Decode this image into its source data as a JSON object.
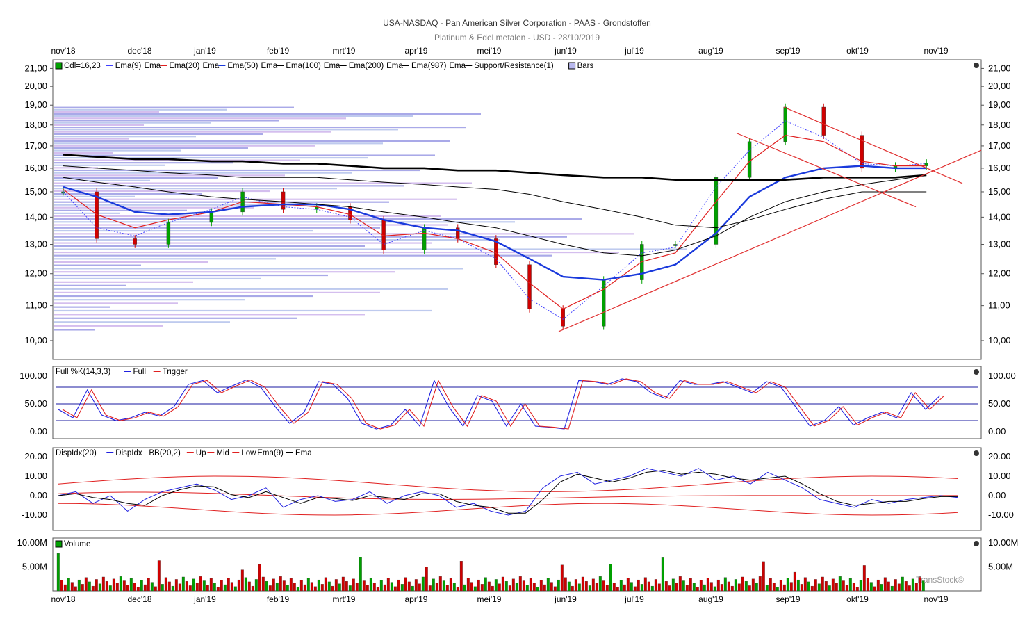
{
  "header": {
    "title": "USA-NASDAQ - Pan American Silver Corporation - PAAS - Grondstoffen",
    "subtitle": "Platinum & Edel metalen - USD - 28/10/2019"
  },
  "months": [
    "nov'18",
    "dec'18",
    "jan'19",
    "feb'19",
    "mrt'19",
    "apr'19",
    "mei'19",
    "jun'19",
    "jul'19",
    "aug'19",
    "sep'19",
    "okt'19",
    "nov'19"
  ],
  "watermark": "TransStock©",
  "colors": {
    "up": "#00a000",
    "down": "#d00000",
    "ema9": "#4040ff",
    "ema20": "#e02020",
    "ema50": "#1a3adc",
    "ema100": "#000000",
    "ema200": "#000000",
    "ema987": "#000000",
    "trend": "#e03030",
    "bars_fill": "#b8b8ee"
  },
  "panels": {
    "price": {
      "legend": [
        "Cdl=16,23",
        "Ema(9)",
        "Ema",
        "Ema(20)",
        "Ema",
        "Ema(50)",
        "Ema",
        "Ema(100)",
        "Ema",
        "Ema(200)",
        "Ema",
        "Ema(987)",
        "Ema",
        "Support/Resistance(1)",
        "Bars"
      ],
      "y_ticks": [
        "21,00",
        "20,00",
        "19,00",
        "18,00",
        "17,00",
        "16,00",
        "15,00",
        "14,00",
        "13,00",
        "12,00",
        "11,00",
        "10,00"
      ],
      "scale": "log"
    },
    "stoch": {
      "legend": [
        "Full %K(14,3,3)",
        "Full",
        "Trigger"
      ],
      "y_ticks": [
        "100.00",
        "50.00",
        "0.00"
      ]
    },
    "disp": {
      "legend": [
        "DispIdx(20)",
        "DispIdx",
        "BB(20,2)",
        "Up",
        "Mid",
        "Low",
        "Ema(9)",
        "Ema"
      ],
      "y_ticks": [
        "20.00",
        "10.00",
        "0.00",
        "-10.00"
      ]
    },
    "volume": {
      "legend": [
        "Volume"
      ],
      "y_ticks": [
        "10.00M",
        "5.00M"
      ]
    }
  },
  "chart_data": {
    "type": "line",
    "title": "USA-NASDAQ - Pan American Silver Corporation - PAAS - Grondstoffen",
    "subtitle": "Platinum & Edel metalen - USD - 28/10/2019",
    "x": [
      "2018-11-01",
      "2018-11-15",
      "2018-12-01",
      "2018-12-15",
      "2019-01-02",
      "2019-01-15",
      "2019-02-01",
      "2019-02-15",
      "2019-03-01",
      "2019-03-15",
      "2019-04-01",
      "2019-04-15",
      "2019-05-01",
      "2019-05-15",
      "2019-05-29",
      "2019-06-15",
      "2019-07-01",
      "2019-07-15",
      "2019-08-01",
      "2019-08-15",
      "2019-08-30",
      "2019-09-15",
      "2019-10-01",
      "2019-10-15",
      "2019-10-28"
    ],
    "series": [
      {
        "name": "Cdl",
        "values": [
          15.0,
          13.2,
          13.0,
          13.8,
          14.2,
          15.0,
          14.3,
          14.4,
          13.9,
          12.8,
          13.6,
          13.2,
          12.3,
          10.9,
          10.4,
          11.8,
          13.0,
          13.0,
          15.6,
          17.2,
          18.9,
          17.5,
          16.0,
          16.1,
          16.23
        ]
      },
      {
        "name": "Ema(9)",
        "values": [
          15.0,
          13.6,
          13.3,
          13.8,
          14.3,
          14.8,
          14.4,
          14.3,
          14.0,
          13.0,
          13.5,
          13.2,
          12.5,
          11.2,
          10.6,
          11.6,
          12.7,
          12.9,
          15.2,
          16.8,
          18.2,
          17.4,
          16.2,
          16.1,
          16.2
        ]
      },
      {
        "name": "Ema(20)",
        "values": [
          15.1,
          14.1,
          13.6,
          13.9,
          14.2,
          14.6,
          14.5,
          14.4,
          14.1,
          13.3,
          13.4,
          13.2,
          12.7,
          11.7,
          10.9,
          11.5,
          12.4,
          12.7,
          14.6,
          16.3,
          17.5,
          17.2,
          16.3,
          16.1,
          16.1
        ]
      },
      {
        "name": "Ema(50)",
        "values": [
          15.2,
          14.8,
          14.2,
          14.1,
          14.2,
          14.4,
          14.5,
          14.5,
          14.3,
          13.9,
          13.6,
          13.5,
          13.1,
          12.5,
          11.9,
          11.8,
          12.0,
          12.3,
          13.4,
          14.8,
          15.6,
          16.0,
          16.1,
          16.0,
          16.0
        ]
      },
      {
        "name": "Ema(100)",
        "values": [
          15.6,
          15.4,
          15.2,
          15.0,
          14.8,
          14.7,
          14.6,
          14.5,
          14.4,
          14.2,
          14.0,
          13.8,
          13.6,
          13.3,
          13.0,
          12.7,
          12.6,
          12.8,
          13.3,
          14.0,
          14.6,
          15.0,
          15.3,
          15.5,
          15.7
        ]
      },
      {
        "name": "Ema(200)",
        "values": [
          16.1,
          16.0,
          15.9,
          15.8,
          15.7,
          15.6,
          15.6,
          15.6,
          15.5,
          15.4,
          15.3,
          15.2,
          15.1,
          14.9,
          14.6,
          14.3,
          14.0,
          13.7,
          13.6,
          13.9,
          14.3,
          14.7,
          15.0,
          15.0,
          15.0
        ]
      },
      {
        "name": "Ema(987)",
        "values": [
          16.6,
          16.5,
          16.4,
          16.4,
          16.3,
          16.3,
          16.2,
          16.2,
          16.1,
          16.0,
          16.0,
          15.9,
          15.9,
          15.8,
          15.7,
          15.6,
          15.6,
          15.5,
          15.5,
          15.5,
          15.5,
          15.6,
          15.6,
          15.6,
          15.7
        ]
      }
    ],
    "ylabel": "",
    "xlabel": "",
    "ylim": [
      9.5,
      21.5
    ],
    "log_scale": true,
    "grid": false,
    "legend_position": "top-left"
  }
}
